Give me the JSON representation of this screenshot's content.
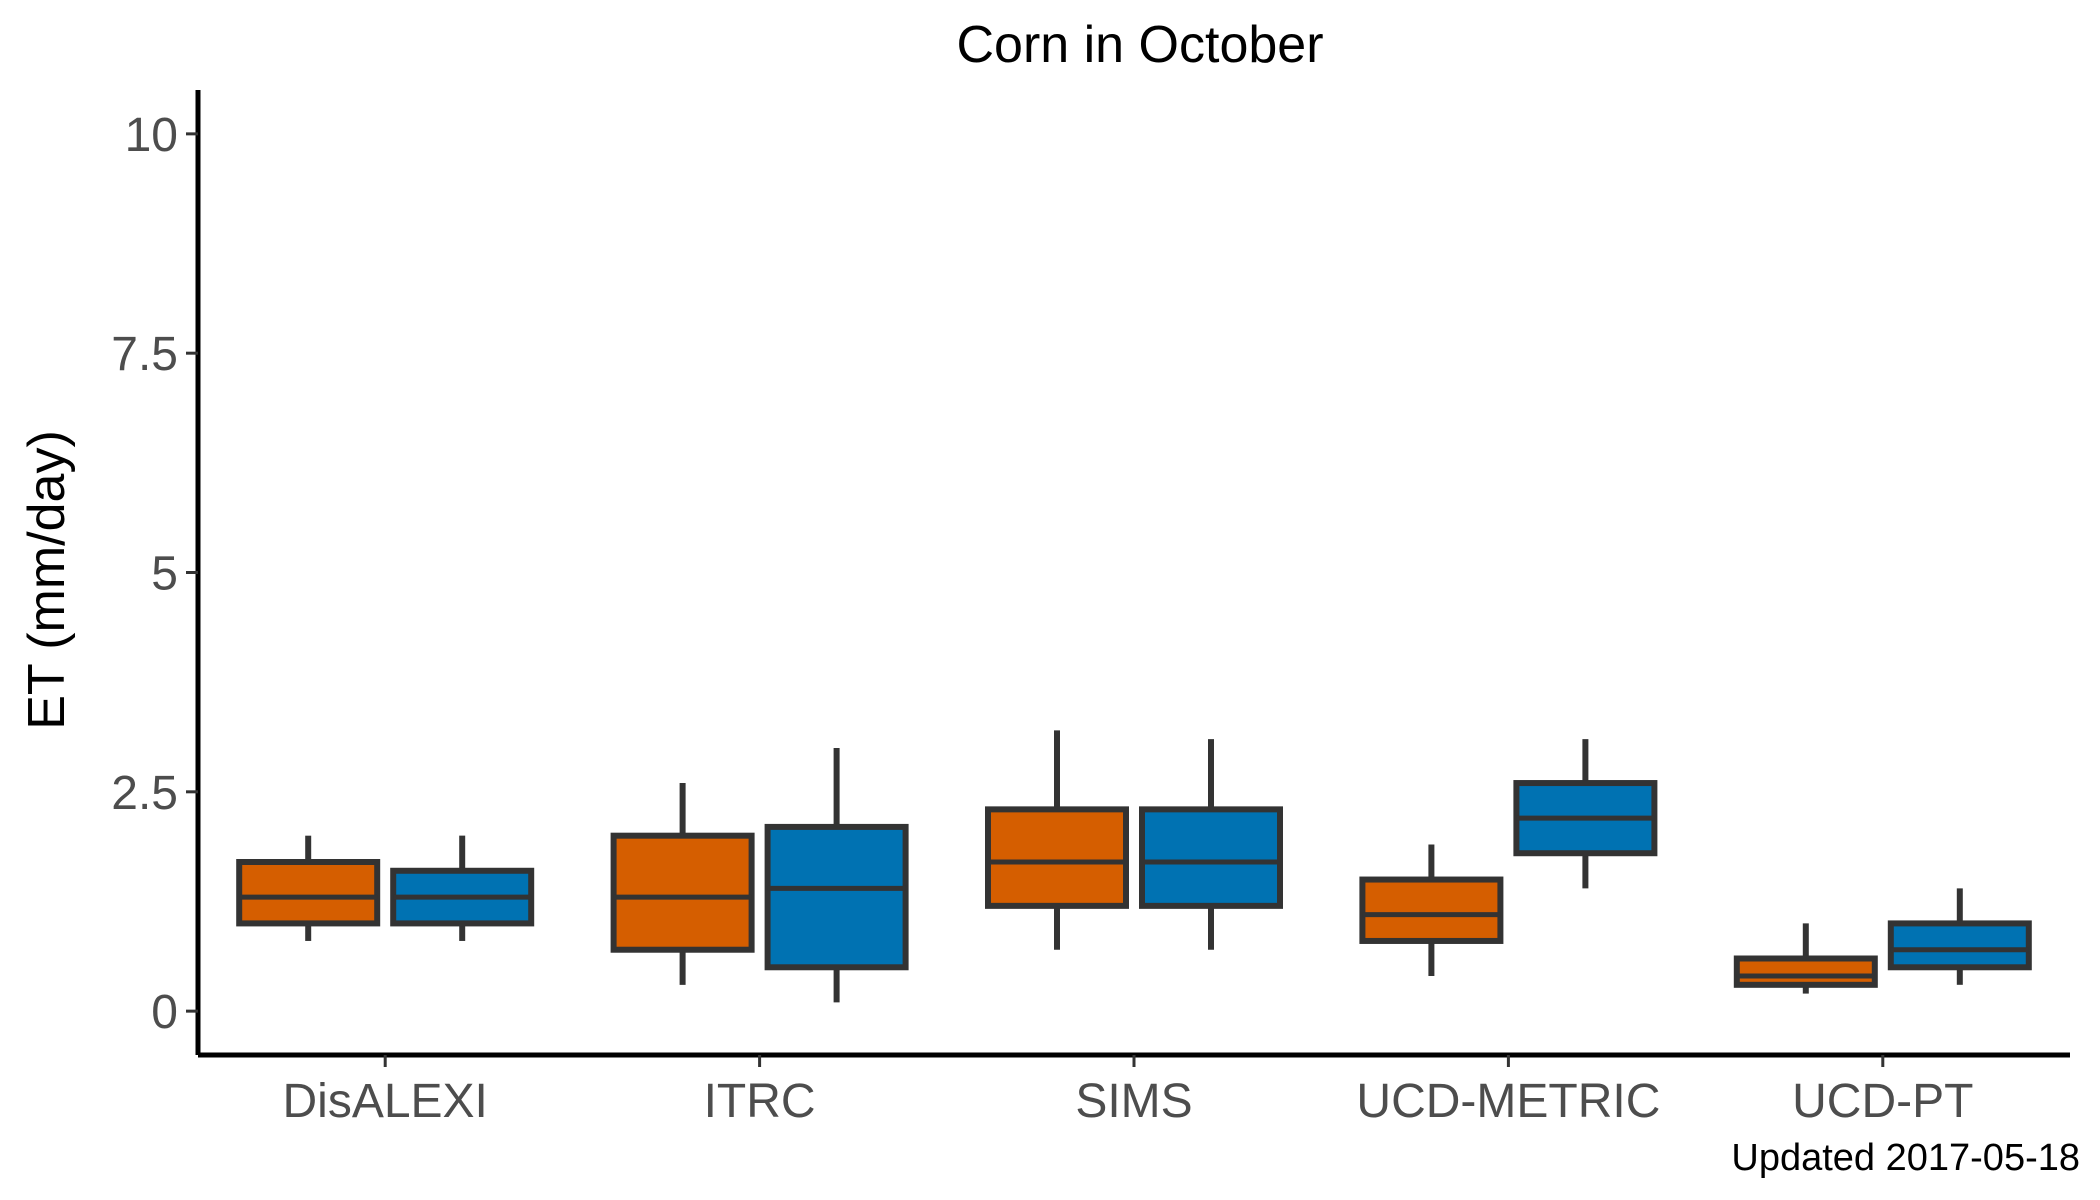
{
  "chart_data": {
    "type": "boxplot",
    "title": "Corn in October",
    "xlabel": "",
    "ylabel": "ET (mm/day)",
    "ylim": [
      -0.5,
      10.5
    ],
    "yticks": [
      0,
      2.5,
      5,
      7.5,
      10
    ],
    "ytick_labels": [
      "0",
      "2.5",
      "5",
      "7.5",
      "10"
    ],
    "categories": [
      "DisALEXI",
      "ITRC",
      "SIMS",
      "UCD-METRIC",
      "UCD-PT"
    ],
    "grid": false,
    "legend": "none",
    "series": [
      {
        "color": "#D55E00",
        "boxes": [
          {
            "min": 0.8,
            "q1": 1.0,
            "median": 1.3,
            "q3": 1.7,
            "max": 2.0
          },
          {
            "min": 0.3,
            "q1": 0.7,
            "median": 1.3,
            "q3": 2.0,
            "max": 2.6
          },
          {
            "min": 0.7,
            "q1": 1.2,
            "median": 1.7,
            "q3": 2.3,
            "max": 3.2
          },
          {
            "min": 0.4,
            "q1": 0.8,
            "median": 1.1,
            "q3": 1.5,
            "max": 1.9
          },
          {
            "min": 0.2,
            "q1": 0.3,
            "median": 0.4,
            "q3": 0.6,
            "max": 1.0
          }
        ]
      },
      {
        "color": "#0072B2",
        "boxes": [
          {
            "min": 0.8,
            "q1": 1.0,
            "median": 1.3,
            "q3": 1.6,
            "max": 2.0
          },
          {
            "min": 0.1,
            "q1": 0.5,
            "median": 1.4,
            "q3": 2.1,
            "max": 3.0
          },
          {
            "min": 0.7,
            "q1": 1.2,
            "median": 1.7,
            "q3": 2.3,
            "max": 3.1
          },
          {
            "min": 1.4,
            "q1": 1.8,
            "median": 2.2,
            "q3": 2.6,
            "max": 3.1
          },
          {
            "min": 0.3,
            "q1": 0.5,
            "median": 0.7,
            "q3": 1.0,
            "max": 1.4
          }
        ]
      }
    ],
    "caption": "Updated  2017-05-18"
  }
}
